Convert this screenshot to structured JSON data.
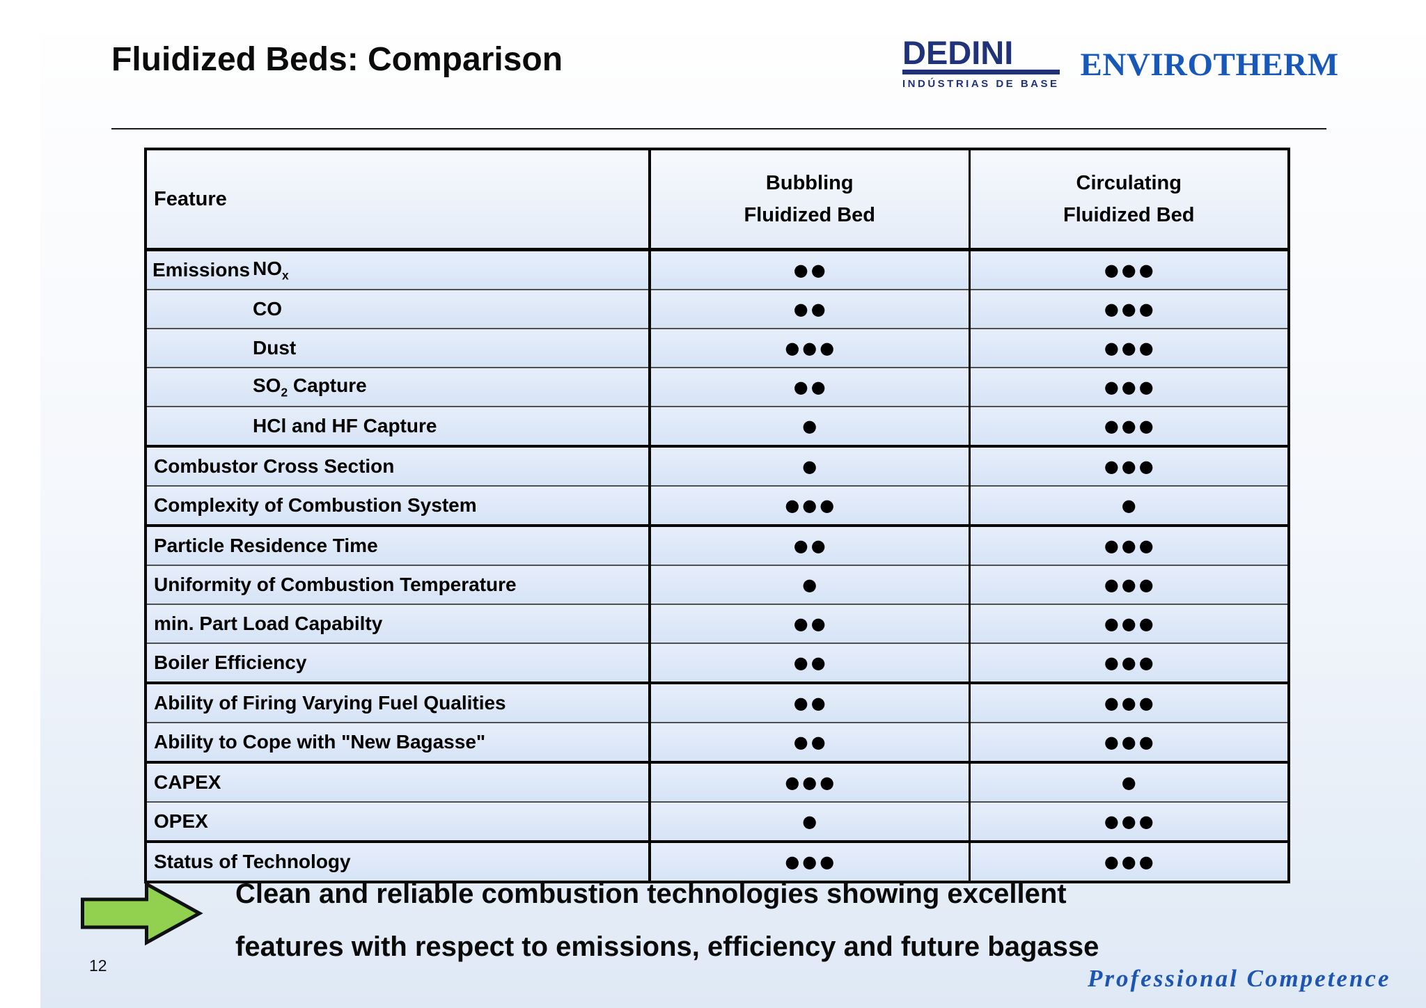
{
  "slide": {
    "title": "Fluidized Beds: Comparison",
    "page_number": "12",
    "footer_tagline": "Professional Competence"
  },
  "logos": {
    "dedini": {
      "name": "DEDINI",
      "subtitle": "INDÚSTRIAS DE BASE",
      "color": "#20327A"
    },
    "envirotherm": {
      "name": "ENVIROTHERM",
      "color": "#1758B8"
    }
  },
  "table": {
    "dot_char": "●",
    "header": {
      "feature": "Feature",
      "bfb_line1": "Bubbling",
      "bfb_line2": "Fluidized Bed",
      "cfb_line1": "Circulating",
      "cfb_line2": "Fluidized Bed"
    },
    "rows": [
      {
        "group": "Emissions",
        "base": "NO",
        "sub": "x",
        "suffix": "",
        "indent": true,
        "bfb": 2,
        "cfb": 3,
        "sep": "thin"
      },
      {
        "base": "CO",
        "indent": true,
        "bfb": 2,
        "cfb": 3,
        "sep": "thin"
      },
      {
        "base": "Dust",
        "indent": true,
        "bfb": 3,
        "cfb": 3,
        "sep": "thin"
      },
      {
        "base": "SO",
        "sub": "2",
        "suffix": " Capture",
        "indent": true,
        "bfb": 2,
        "cfb": 3,
        "sep": "thin"
      },
      {
        "base": "HCl and HF Capture",
        "indent": true,
        "bfb": 1,
        "cfb": 3,
        "sep": "thick"
      },
      {
        "base": "Combustor Cross Section",
        "bfb": 1,
        "cfb": 3,
        "sep": "thin"
      },
      {
        "base": "Complexity of Combustion System",
        "bfb": 3,
        "cfb": 1,
        "sep": "thick"
      },
      {
        "base": "Particle Residence Time",
        "bfb": 2,
        "cfb": 3,
        "sep": "thin"
      },
      {
        "base": "Uniformity of Combustion Temperature",
        "bfb": 1,
        "cfb": 3,
        "sep": "thin"
      },
      {
        "base": "min. Part Load Capabilty",
        "bfb": 2,
        "cfb": 3,
        "sep": "thin"
      },
      {
        "base": "Boiler Efficiency",
        "bfb": 2,
        "cfb": 3,
        "sep": "thick"
      },
      {
        "base": "Ability of Firing Varying Fuel Qualities",
        "bfb": 2,
        "cfb": 3,
        "sep": "thin"
      },
      {
        "base": "Ability to Cope with \"New Bagasse\"",
        "bfb": 2,
        "cfb": 3,
        "sep": "thick"
      },
      {
        "base": "CAPEX",
        "bfb": 3,
        "cfb": 1,
        "sep": "thin"
      },
      {
        "base": "OPEX",
        "bfb": 1,
        "cfb": 3,
        "sep": "thick"
      },
      {
        "base": "Status of Technology",
        "bfb": 3,
        "cfb": 3,
        "sep": "none"
      }
    ]
  },
  "conclusion": {
    "line1": "Clean and reliable combustion technologies showing excellent",
    "line2": "features with respect to emissions, efficiency and future bagasse"
  },
  "arrow": {
    "color": "#92D050"
  }
}
